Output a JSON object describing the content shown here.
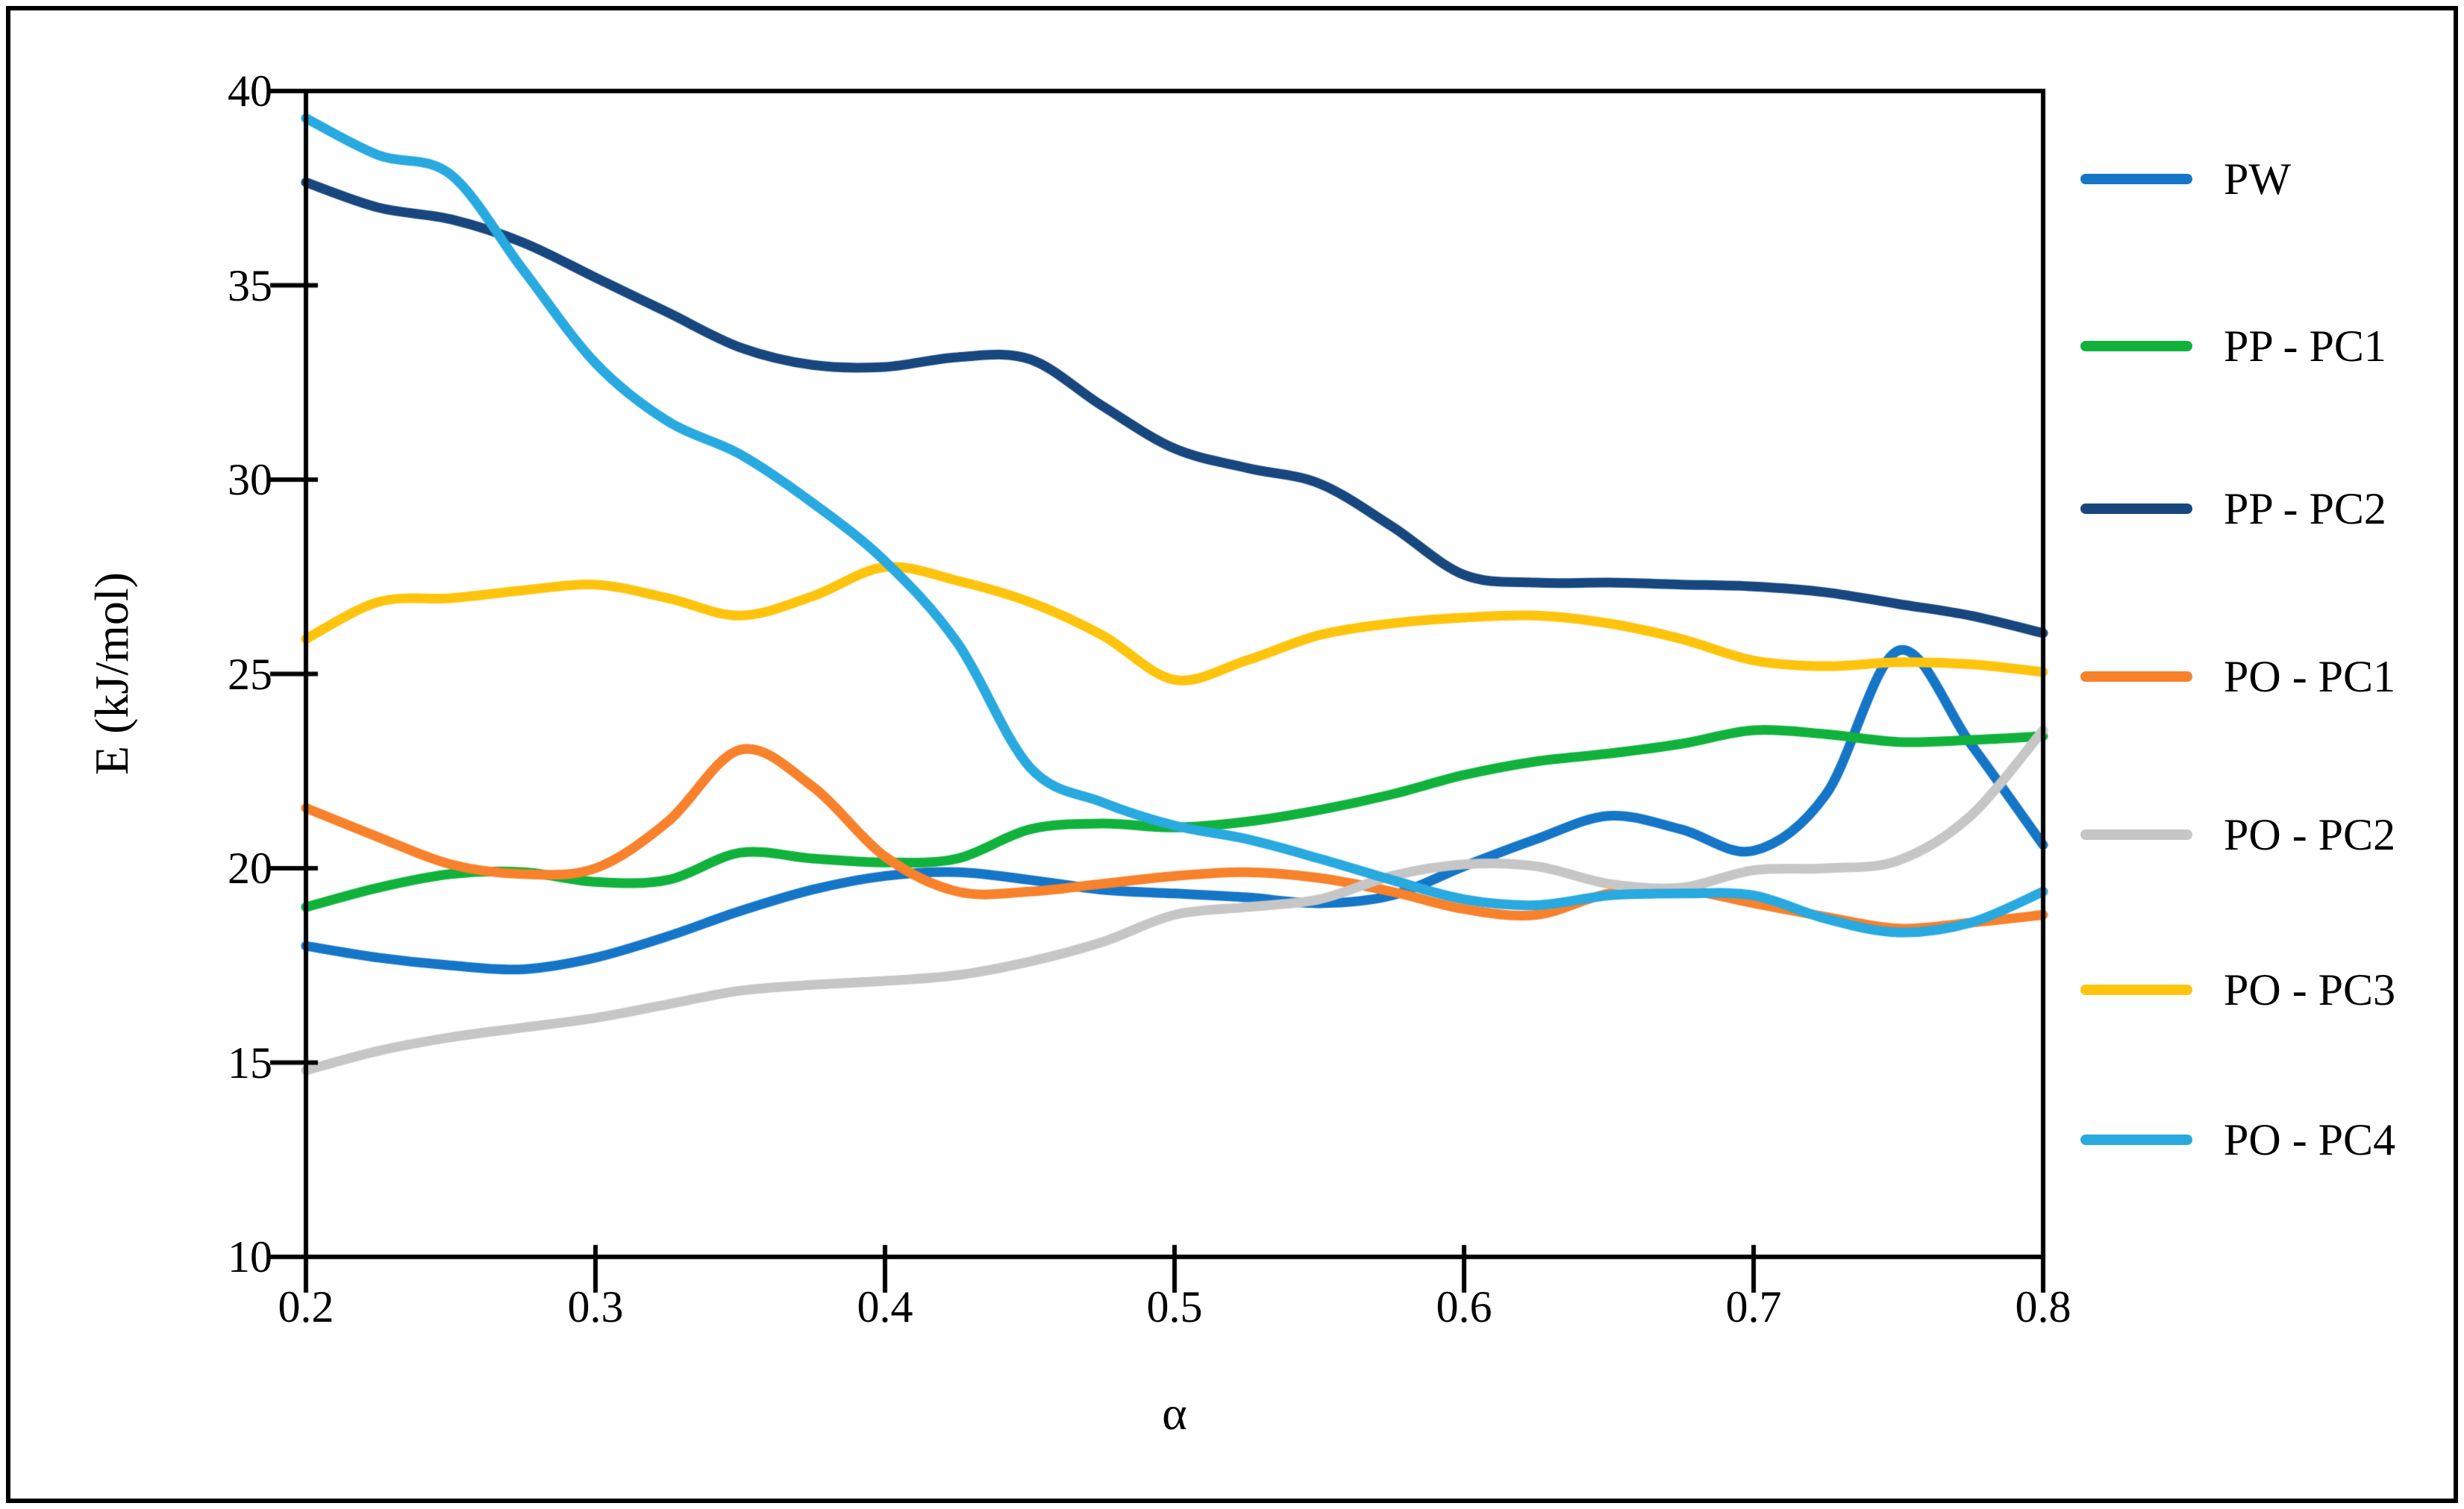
{
  "figure": {
    "xlabel": "α",
    "ylabel": "E (kJ/mol)"
  },
  "chart_data": {
    "type": "line",
    "title": "",
    "xlabel": "α",
    "ylabel": "E (kJ/mol)",
    "xlim": [
      0.2,
      0.8
    ],
    "ylim": [
      10,
      40
    ],
    "grid": false,
    "legend_position": "right",
    "x_ticks": [
      "0.2",
      "0.3",
      "0.4",
      "0.5",
      "0.6",
      "0.7",
      "0.8"
    ],
    "y_ticks": [
      "10",
      "15",
      "20",
      "25",
      "30",
      "35",
      "40"
    ],
    "x": [
      0.2,
      0.225,
      0.25,
      0.275,
      0.3,
      0.325,
      0.35,
      0.375,
      0.4,
      0.425,
      0.45,
      0.475,
      0.5,
      0.525,
      0.55,
      0.575,
      0.6,
      0.625,
      0.65,
      0.675,
      0.7,
      0.725,
      0.75,
      0.775,
      0.8
    ],
    "series": [
      {
        "name": "PW",
        "color": "#1576C8",
        "values": [
          18.0,
          17.7,
          17.5,
          17.4,
          17.7,
          18.25,
          18.9,
          19.45,
          19.8,
          19.9,
          19.7,
          19.45,
          19.35,
          19.25,
          19.1,
          19.3,
          20.05,
          20.75,
          21.35,
          21.0,
          20.45,
          21.9,
          25.6,
          23.2,
          20.6
        ]
      },
      {
        "name": "PP - PC1",
        "color": "#10B23C",
        "values": [
          19.0,
          19.5,
          19.85,
          19.9,
          19.65,
          19.7,
          20.4,
          20.25,
          20.15,
          20.25,
          21.0,
          21.15,
          21.05,
          21.2,
          21.5,
          21.9,
          22.4,
          22.75,
          22.95,
          23.2,
          23.55,
          23.45,
          23.25,
          23.3,
          23.4
        ]
      },
      {
        "name": "PP - PC2",
        "color": "#17477E",
        "values": [
          37.65,
          37.0,
          36.7,
          36.1,
          35.2,
          34.3,
          33.4,
          32.95,
          32.9,
          33.15,
          33.1,
          31.9,
          30.8,
          30.3,
          29.9,
          28.8,
          27.55,
          27.35,
          27.35,
          27.3,
          27.25,
          27.1,
          26.8,
          26.5,
          26.05
        ]
      },
      {
        "name": "PO - PC1",
        "color": "#F8812C",
        "values": [
          21.55,
          20.8,
          20.1,
          19.85,
          20.0,
          21.2,
          23.05,
          22.1,
          20.3,
          19.4,
          19.4,
          19.6,
          19.8,
          19.9,
          19.75,
          19.4,
          18.95,
          18.8,
          19.35,
          19.45,
          19.1,
          18.75,
          18.45,
          18.6,
          18.8
        ]
      },
      {
        "name": "PO - PC2",
        "color": "#C6C6C6",
        "values": [
          14.8,
          15.3,
          15.65,
          15.9,
          16.15,
          16.5,
          16.85,
          17.0,
          17.1,
          17.25,
          17.6,
          18.1,
          18.8,
          19.0,
          19.2,
          19.8,
          20.1,
          20.05,
          19.6,
          19.5,
          19.95,
          20.0,
          20.2,
          21.35,
          23.55
        ]
      },
      {
        "name": "PO - PC3",
        "color": "#FEC40D",
        "values": [
          25.9,
          26.85,
          26.95,
          27.15,
          27.3,
          26.95,
          26.5,
          27.0,
          27.75,
          27.4,
          26.85,
          26.0,
          24.85,
          25.35,
          26.0,
          26.3,
          26.45,
          26.5,
          26.3,
          25.9,
          25.35,
          25.2,
          25.3,
          25.25,
          25.05
        ]
      },
      {
        "name": "PO - PC4",
        "color": "#28A9E0",
        "values": [
          39.3,
          38.35,
          37.85,
          35.4,
          33.0,
          31.5,
          30.65,
          29.4,
          27.9,
          25.8,
          22.6,
          21.7,
          21.1,
          20.75,
          20.25,
          19.7,
          19.2,
          19.05,
          19.3,
          19.35,
          19.3,
          18.7,
          18.35,
          18.6,
          19.4
        ]
      }
    ]
  }
}
